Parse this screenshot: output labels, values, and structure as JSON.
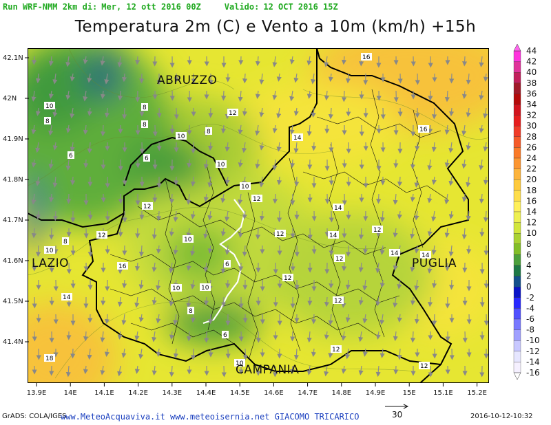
{
  "header": {
    "run": "Run WRF-NMM 2km di:",
    "run_date": "Mer, 12 ott 2016 00Z",
    "valid_label": "Valido:",
    "valid_date": "12 OCT 2016 15Z"
  },
  "title": "Temperatura 2m (C) e Vento a 10m (km/h) +15h",
  "map": {
    "lon_ticks": [
      "13.9E",
      "14E",
      "14.1E",
      "14.2E",
      "14.3E",
      "14.4E",
      "14.5E",
      "14.6E",
      "14.7E",
      "14.8E",
      "14.9E",
      "15E",
      "15.1E",
      "15.2E"
    ],
    "lat_ticks": [
      "42.1N",
      "42N",
      "41.9N",
      "41.8N",
      "41.7N",
      "41.6N",
      "41.5N",
      "41.4N"
    ],
    "regions": [
      {
        "name": "ABRUZZO"
      },
      {
        "name": "LAZIO"
      },
      {
        "name": "PUGLIA"
      },
      {
        "name": "CAMPANIA"
      }
    ],
    "contour_labels": [
      "16",
      "10",
      "8",
      "8",
      "8",
      "12",
      "10",
      "6",
      "8",
      "14",
      "16",
      "10",
      "6",
      "10",
      "12",
      "12",
      "10",
      "14",
      "12",
      "10",
      "8",
      "12",
      "12",
      "14",
      "14",
      "10",
      "12",
      "16",
      "6",
      "14",
      "10",
      "14",
      "8",
      "12",
      "12",
      "6",
      "18",
      "10",
      "12",
      "12"
    ]
  },
  "colorbar": {
    "levels": [
      "44",
      "42",
      "40",
      "38",
      "36",
      "34",
      "32",
      "30",
      "28",
      "26",
      "24",
      "22",
      "20",
      "18",
      "16",
      "14",
      "12",
      "10",
      "8",
      "6",
      "4",
      "2",
      "0",
      "-2",
      "-4",
      "-6",
      "-8",
      "-10",
      "-12",
      "-14",
      "-16"
    ],
    "colors": [
      "#ff33dd",
      "#e0339a",
      "#c21f5c",
      "#a01a2a",
      "#b40a0a",
      "#d2141e",
      "#e61e1e",
      "#f03c28",
      "#f55a28",
      "#fa7a28",
      "#fc9632",
      "#fdb43c",
      "#feca3c",
      "#fede4b",
      "#fff05a",
      "#eef050",
      "#d2e63c",
      "#aad232",
      "#82be28",
      "#4ca03c",
      "#1e7846",
      "#14508c",
      "#0a14c8",
      "#2828ff",
      "#5050ff",
      "#7878ff",
      "#a0a0ff",
      "#c8c8ff",
      "#e6e6ff",
      "#f5f0ff"
    ]
  },
  "wind_scale": {
    "value": "30"
  },
  "footer": {
    "grads": "GrADS: COLA/IGES",
    "credits": "www.MeteoAcquaviva.it www.meteoisernia.net GIACOMO TRICARICO",
    "timestamp": "2016-10-12-10:32"
  }
}
